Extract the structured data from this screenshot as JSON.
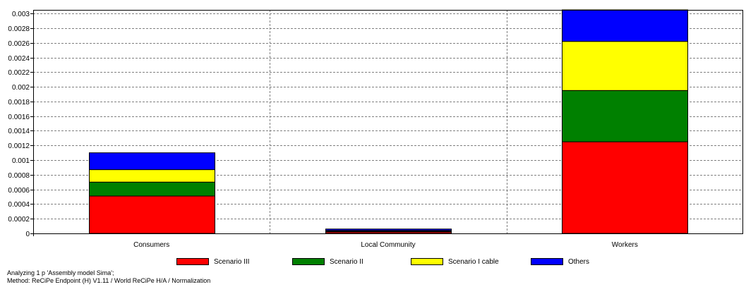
{
  "chart_data": {
    "type": "bar",
    "stacked": true,
    "categories": [
      "Consumers",
      "Local Community",
      "Workers"
    ],
    "series": [
      {
        "name": "Scenario III",
        "color": "#ff0000",
        "values": [
          0.00051,
          2e-05,
          0.00125
        ]
      },
      {
        "name": "Scenario II",
        "color": "#008000",
        "values": [
          0.00019,
          1e-05,
          0.0007
        ]
      },
      {
        "name": "Scenario I  cable",
        "color": "#ffff00",
        "values": [
          0.00017,
          1e-05,
          0.00067
        ]
      },
      {
        "name": "Others",
        "color": "#0000ff",
        "values": [
          0.00023,
          2e-05,
          0.00043
        ]
      }
    ],
    "ylim": [
      0,
      0.00305
    ],
    "yticks": [
      "0",
      "0.0002",
      "0.0004",
      "0.0006",
      "0.0008",
      "0.001",
      "0.0012",
      "0.0014",
      "0.0016",
      "0.0018",
      "0.002",
      "0.0022",
      "0.0024",
      "0.0026",
      "0.0028",
      "0.003"
    ],
    "grid": true,
    "legend_position": "bottom"
  },
  "footer": {
    "line1": "Analyzing 1 p 'Assembly model Sima';",
    "line2": "Method: ReCiPe Endpoint (H) V1.11 / World ReCiPe H/A / Normalization"
  }
}
